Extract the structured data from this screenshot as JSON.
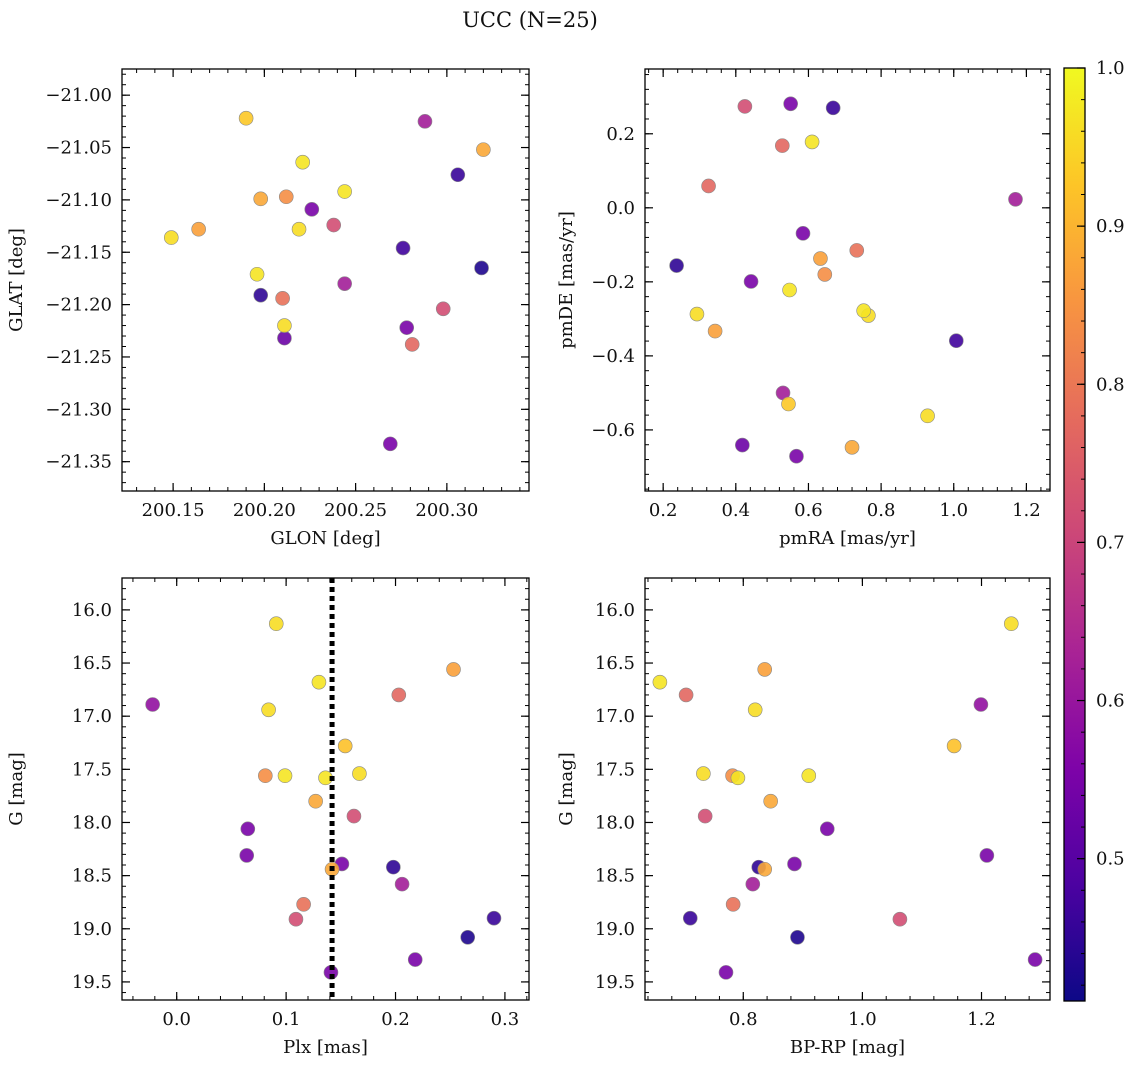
{
  "figure": {
    "title": "UCC (N=25)"
  },
  "colorbar": {
    "min": 0.41,
    "max": 1.0,
    "ticks": [
      0.5,
      0.6,
      0.7,
      0.8,
      0.9,
      1.0
    ],
    "tick_labels": [
      "0.5",
      "0.6",
      "0.7",
      "0.8",
      "0.9",
      "1.0"
    ],
    "colormap": "plasma"
  },
  "chart_data": [
    {
      "type": "scatter",
      "title": "",
      "xlabel": "GLON [deg]",
      "ylabel": "GLAT [deg]",
      "xlim": [
        200.122,
        200.345
      ],
      "ylim": [
        -21.378,
        -20.975
      ],
      "y_inverted": false,
      "xticks": [
        200.15,
        200.2,
        200.25,
        200.3
      ],
      "xtick_labels": [
        "200.15",
        "200.20",
        "200.25",
        "200.30"
      ],
      "yticks": [
        -21.0,
        -21.05,
        -21.1,
        -21.15,
        -21.2,
        -21.25,
        -21.3,
        -21.35
      ],
      "ytick_labels": [
        "−21.00",
        "−21.05",
        "−21.10",
        "−21.15",
        "−21.20",
        "−21.25",
        "−21.30",
        "−21.35"
      ],
      "points": [
        {
          "x": 200.149,
          "y": -21.136,
          "c": 0.96
        },
        {
          "x": 200.164,
          "y": -21.128,
          "c": 0.87
        },
        {
          "x": 200.19,
          "y": -21.022,
          "c": 0.93
        },
        {
          "x": 200.198,
          "y": -21.099,
          "c": 0.88
        },
        {
          "x": 200.196,
          "y": -21.171,
          "c": 0.97
        },
        {
          "x": 200.198,
          "y": -21.191,
          "c": 0.45
        },
        {
          "x": 200.212,
          "y": -21.097,
          "c": 0.84
        },
        {
          "x": 200.21,
          "y": -21.194,
          "c": 0.79
        },
        {
          "x": 200.211,
          "y": -21.22,
          "c": 0.96
        },
        {
          "x": 200.211,
          "y": -21.232,
          "c": 0.53
        },
        {
          "x": 200.221,
          "y": -21.064,
          "c": 0.97
        },
        {
          "x": 200.219,
          "y": -21.128,
          "c": 0.96
        },
        {
          "x": 200.226,
          "y": -21.109,
          "c": 0.55
        },
        {
          "x": 200.238,
          "y": -21.124,
          "c": 0.72
        },
        {
          "x": 200.244,
          "y": -21.092,
          "c": 0.97
        },
        {
          "x": 200.244,
          "y": -21.18,
          "c": 0.62
        },
        {
          "x": 200.269,
          "y": -21.333,
          "c": 0.55
        },
        {
          "x": 200.276,
          "y": -21.146,
          "c": 0.47
        },
        {
          "x": 200.278,
          "y": -21.222,
          "c": 0.55
        },
        {
          "x": 200.281,
          "y": -21.238,
          "c": 0.77
        },
        {
          "x": 200.288,
          "y": -21.025,
          "c": 0.62
        },
        {
          "x": 200.298,
          "y": -21.204,
          "c": 0.72
        },
        {
          "x": 200.306,
          "y": -21.076,
          "c": 0.46
        },
        {
          "x": 200.319,
          "y": -21.165,
          "c": 0.43
        },
        {
          "x": 200.32,
          "y": -21.052,
          "c": 0.88
        }
      ]
    },
    {
      "type": "scatter",
      "title": "",
      "xlabel": "pmRA [mas/yr]",
      "ylabel": "pmDE [mas/yr]",
      "xlim": [
        0.15,
        1.265
      ],
      "ylim": [
        -0.765,
        0.375
      ],
      "y_inverted": false,
      "xticks": [
        0.2,
        0.4,
        0.6,
        0.8,
        1.0,
        1.2
      ],
      "xtick_labels": [
        "0.2",
        "0.4",
        "0.6",
        "0.8",
        "1.0",
        "1.2"
      ],
      "yticks": [
        0.2,
        0.0,
        -0.2,
        -0.4,
        -0.6
      ],
      "ytick_labels": [
        "0.2",
        "0.0",
        "−0.2",
        "−0.4",
        "−0.6"
      ],
      "points": [
        {
          "x": 0.237,
          "y": -0.156,
          "c": 0.45
        },
        {
          "x": 0.293,
          "y": -0.287,
          "c": 0.96
        },
        {
          "x": 0.325,
          "y": 0.059,
          "c": 0.77
        },
        {
          "x": 0.343,
          "y": -0.333,
          "c": 0.87
        },
        {
          "x": 0.418,
          "y": -0.641,
          "c": 0.53
        },
        {
          "x": 0.425,
          "y": 0.274,
          "c": 0.72
        },
        {
          "x": 0.442,
          "y": -0.199,
          "c": 0.55
        },
        {
          "x": 0.528,
          "y": 0.168,
          "c": 0.77
        },
        {
          "x": 0.53,
          "y": -0.5,
          "c": 0.62
        },
        {
          "x": 0.545,
          "y": -0.53,
          "c": 0.93
        },
        {
          "x": 0.548,
          "y": -0.222,
          "c": 0.97
        },
        {
          "x": 0.551,
          "y": 0.281,
          "c": 0.55
        },
        {
          "x": 0.567,
          "y": -0.671,
          "c": 0.55
        },
        {
          "x": 0.585,
          "y": -0.069,
          "c": 0.55
        },
        {
          "x": 0.61,
          "y": 0.178,
          "c": 0.97
        },
        {
          "x": 0.633,
          "y": -0.137,
          "c": 0.87
        },
        {
          "x": 0.645,
          "y": -0.18,
          "c": 0.84
        },
        {
          "x": 0.668,
          "y": 0.27,
          "c": 0.46
        },
        {
          "x": 0.72,
          "y": -0.647,
          "c": 0.88
        },
        {
          "x": 0.733,
          "y": -0.115,
          "c": 0.79
        },
        {
          "x": 0.752,
          "y": -0.278,
          "c": 0.97
        },
        {
          "x": 0.765,
          "y": -0.291,
          "c": 0.96
        },
        {
          "x": 0.928,
          "y": -0.562,
          "c": 0.96
        },
        {
          "x": 1.007,
          "y": -0.359,
          "c": 0.47
        },
        {
          "x": 1.17,
          "y": 0.023,
          "c": 0.62
        }
      ]
    },
    {
      "type": "scatter",
      "title": "",
      "xlabel": "Plx [mas]",
      "ylabel": "G [mag]",
      "xlim": [
        -0.05,
        0.322
      ],
      "ylim": [
        19.67,
        15.7
      ],
      "y_inverted": true,
      "vline": {
        "x": 0.142,
        "style": "dotted",
        "color": "#000000"
      },
      "xticks": [
        0.0,
        0.1,
        0.2,
        0.3
      ],
      "xtick_labels": [
        "0.0",
        "0.1",
        "0.2",
        "0.3"
      ],
      "yticks": [
        16.0,
        16.5,
        17.0,
        17.5,
        18.0,
        18.5,
        19.0,
        19.5
      ],
      "ytick_labels": [
        "16.0",
        "16.5",
        "17.0",
        "17.5",
        "18.0",
        "18.5",
        "19.0",
        "19.5"
      ],
      "points": [
        {
          "x": -0.022,
          "y": 16.89,
          "c": 0.59
        },
        {
          "x": 0.091,
          "y": 16.13,
          "c": 0.96
        },
        {
          "x": 0.13,
          "y": 16.68,
          "c": 0.97
        },
        {
          "x": 0.084,
          "y": 16.94,
          "c": 0.96
        },
        {
          "x": 0.253,
          "y": 16.56,
          "c": 0.87
        },
        {
          "x": 0.203,
          "y": 16.8,
          "c": 0.77
        },
        {
          "x": 0.154,
          "y": 17.28,
          "c": 0.92
        },
        {
          "x": 0.081,
          "y": 17.56,
          "c": 0.84
        },
        {
          "x": 0.099,
          "y": 17.56,
          "c": 0.97
        },
        {
          "x": 0.136,
          "y": 17.58,
          "c": 0.97
        },
        {
          "x": 0.167,
          "y": 17.54,
          "c": 0.96
        },
        {
          "x": 0.127,
          "y": 17.8,
          "c": 0.88
        },
        {
          "x": 0.162,
          "y": 17.94,
          "c": 0.72
        },
        {
          "x": 0.065,
          "y": 18.06,
          "c": 0.55
        },
        {
          "x": 0.064,
          "y": 18.31,
          "c": 0.55
        },
        {
          "x": 0.151,
          "y": 18.39,
          "c": 0.55
        },
        {
          "x": 0.198,
          "y": 18.42,
          "c": 0.45
        },
        {
          "x": 0.142,
          "y": 18.44,
          "c": 0.88
        },
        {
          "x": 0.206,
          "y": 18.58,
          "c": 0.62
        },
        {
          "x": 0.116,
          "y": 18.77,
          "c": 0.79
        },
        {
          "x": 0.109,
          "y": 18.91,
          "c": 0.72
        },
        {
          "x": 0.29,
          "y": 18.9,
          "c": 0.46
        },
        {
          "x": 0.266,
          "y": 19.08,
          "c": 0.43
        },
        {
          "x": 0.218,
          "y": 19.29,
          "c": 0.55
        },
        {
          "x": 0.141,
          "y": 19.41,
          "c": 0.55
        }
      ]
    },
    {
      "type": "scatter",
      "title": "",
      "xlabel": "BP-RP [mag]",
      "ylabel": "G [mag]",
      "xlim": [
        0.635,
        1.315
      ],
      "ylim": [
        19.67,
        15.7
      ],
      "y_inverted": true,
      "xticks": [
        0.8,
        1.0,
        1.2
      ],
      "xtick_labels": [
        "0.8",
        "1.0",
        "1.2"
      ],
      "yticks": [
        16.0,
        16.5,
        17.0,
        17.5,
        18.0,
        18.5,
        19.0,
        19.5
      ],
      "ytick_labels": [
        "16.0",
        "16.5",
        "17.0",
        "17.5",
        "18.0",
        "18.5",
        "19.0",
        "19.5"
      ],
      "points": [
        {
          "x": 0.66,
          "y": 16.68,
          "c": 0.97
        },
        {
          "x": 0.704,
          "y": 16.8,
          "c": 0.77
        },
        {
          "x": 0.836,
          "y": 16.56,
          "c": 0.87
        },
        {
          "x": 0.82,
          "y": 16.94,
          "c": 0.96
        },
        {
          "x": 1.25,
          "y": 16.13,
          "c": 0.96
        },
        {
          "x": 1.199,
          "y": 16.89,
          "c": 0.59
        },
        {
          "x": 1.154,
          "y": 17.28,
          "c": 0.92
        },
        {
          "x": 0.733,
          "y": 17.54,
          "c": 0.96
        },
        {
          "x": 0.782,
          "y": 17.56,
          "c": 0.84
        },
        {
          "x": 0.791,
          "y": 17.58,
          "c": 0.97
        },
        {
          "x": 0.91,
          "y": 17.56,
          "c": 0.97
        },
        {
          "x": 0.846,
          "y": 17.8,
          "c": 0.88
        },
        {
          "x": 0.736,
          "y": 17.94,
          "c": 0.72
        },
        {
          "x": 0.941,
          "y": 18.06,
          "c": 0.55
        },
        {
          "x": 1.209,
          "y": 18.31,
          "c": 0.55
        },
        {
          "x": 0.826,
          "y": 18.42,
          "c": 0.45
        },
        {
          "x": 0.836,
          "y": 18.44,
          "c": 0.88
        },
        {
          "x": 0.886,
          "y": 18.39,
          "c": 0.55
        },
        {
          "x": 0.816,
          "y": 18.58,
          "c": 0.62
        },
        {
          "x": 0.783,
          "y": 18.77,
          "c": 0.79
        },
        {
          "x": 0.711,
          "y": 18.9,
          "c": 0.46
        },
        {
          "x": 1.063,
          "y": 18.91,
          "c": 0.72
        },
        {
          "x": 0.891,
          "y": 19.08,
          "c": 0.43
        },
        {
          "x": 0.771,
          "y": 19.41,
          "c": 0.55
        },
        {
          "x": 1.29,
          "y": 19.29,
          "c": 0.55
        }
      ]
    }
  ]
}
